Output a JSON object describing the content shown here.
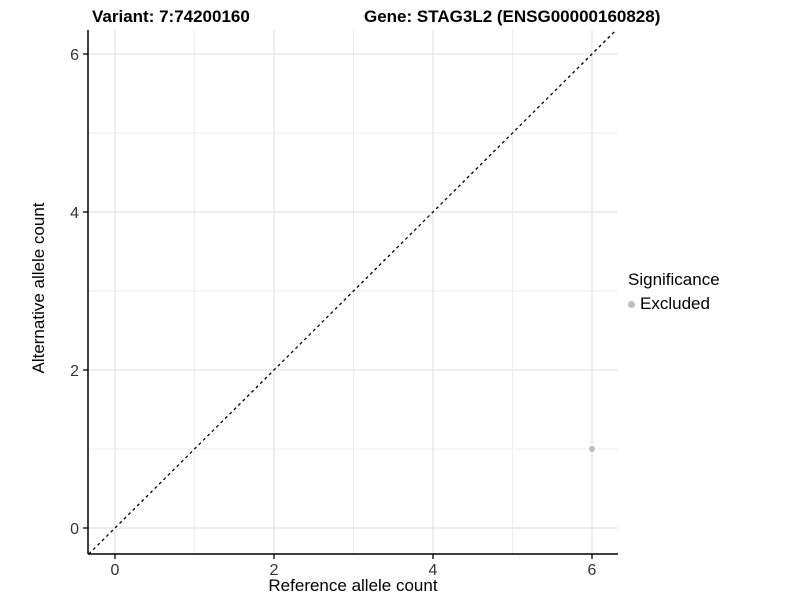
{
  "titles": {
    "variant": "Variant: 7:74200160",
    "gene": "Gene: STAG3L2 (ENSG00000160828)"
  },
  "axes": {
    "x_title": "Reference allele count",
    "y_title": "Alternative allele count"
  },
  "legend": {
    "title": "Significance",
    "items": [
      {
        "label": "Excluded",
        "color": "#bebebe",
        "marker": "circle-icon"
      }
    ]
  },
  "colors": {
    "background": "#ffffff",
    "axis_line": "#000000",
    "tick_label": "#333333",
    "grid_major": "#e3e3e3",
    "grid_minor": "#ededed",
    "reference_line": "#000000",
    "excluded_point": "#bebebe"
  },
  "chart_data": {
    "type": "scatter",
    "title": "Variant: 7:74200160 | Gene: STAG3L2 (ENSG00000160828)",
    "xlabel": "Reference allele count",
    "ylabel": "Alternative allele count",
    "xlim": [
      -0.33,
      6.3
    ],
    "ylim": [
      -0.33,
      6.3
    ],
    "x_ticks": [
      0,
      2,
      4,
      6
    ],
    "y_ticks": [
      0,
      2,
      4,
      6
    ],
    "grid": {
      "min": 0,
      "max": 6,
      "minor_every": 1,
      "major_every": 2
    },
    "series": [
      {
        "name": "Excluded",
        "color": "#bebebe",
        "points": [
          [
            6,
            1
          ]
        ]
      }
    ],
    "reference_line": {
      "kind": "identity",
      "slope": 1,
      "intercept": 0,
      "style": "dashed"
    },
    "legend_position": "right"
  }
}
